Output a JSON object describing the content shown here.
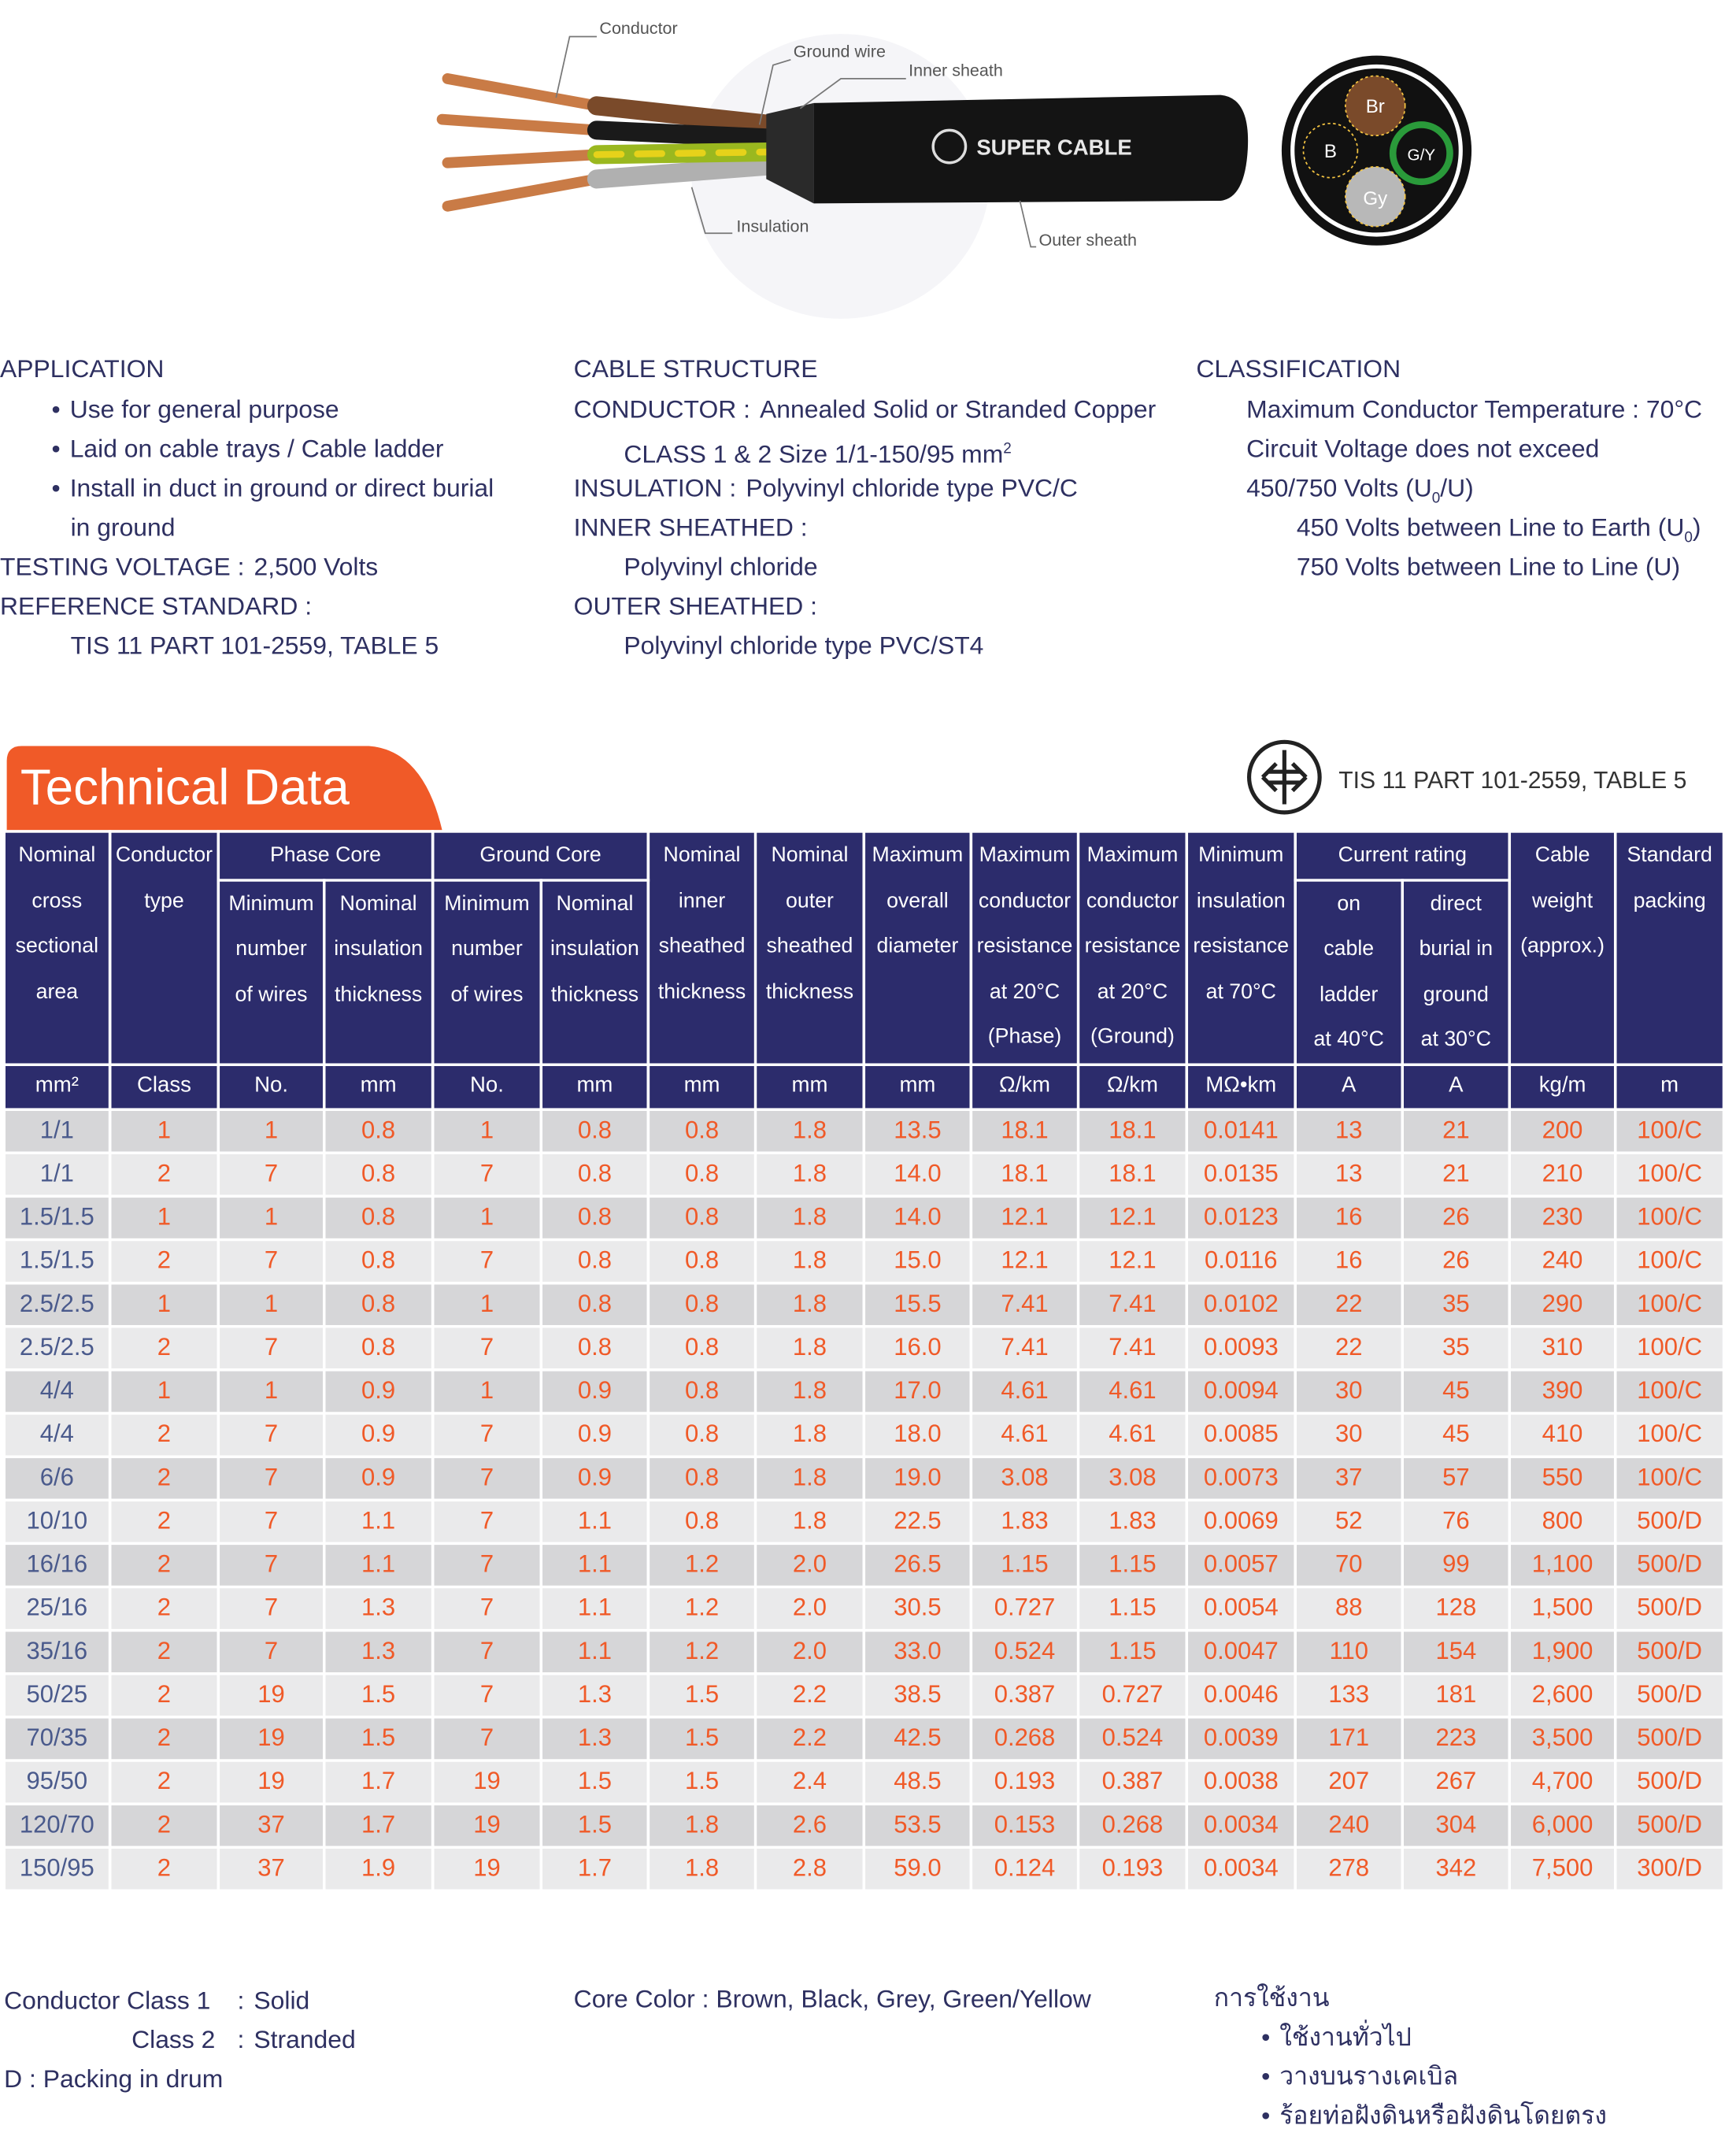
{
  "diagram": {
    "labels": {
      "conductor": "Conductor",
      "ground_wire": "Ground wire",
      "inner_sheath": "Inner sheath",
      "insulation": "Insulation",
      "outer_sheath": "Outer sheath"
    },
    "brand": "SUPER CABLE",
    "cores": [
      "Br",
      "B",
      "G/Y",
      "Gy"
    ]
  },
  "application": {
    "title": "APPLICATION",
    "items": [
      [
        "Use for general purpose"
      ],
      [
        "Laid on cable trays / Cable ladder"
      ],
      [
        "Install in duct in ground or direct burial",
        "in ground"
      ]
    ]
  },
  "testing_voltage": {
    "label": "TESTING VOLTAGE :",
    "value": "2,500 Volts"
  },
  "reference_standard": {
    "label": "REFERENCE STANDARD :",
    "value": "TIS 11 PART 101-2559, TABLE 5"
  },
  "cable_structure": {
    "title": "CABLE STRUCTURE",
    "conductor": {
      "label": "CONDUCTOR :",
      "value": "Annealed Solid or Stranded Copper",
      "detail": [
        "CLASS 1 & 2 Size 1/1-150/95 mm",
        "2"
      ]
    },
    "insulation": {
      "label": "INSULATION :",
      "value": "Polyvinyl chloride type PVC/C"
    },
    "inner_sheathed": {
      "label": "INNER SHEATHED :",
      "value": "Polyvinyl chloride"
    },
    "outer_sheathed": {
      "label": "OUTER SHEATHED :",
      "value": "Polyvinyl chloride type PVC/ST4"
    }
  },
  "classification": {
    "title": "CLASSIFICATION",
    "lines": [
      "Maximum Conductor Temperature : 70°C",
      "Circuit Voltage does not exceed",
      [
        "450/750 Volts (U",
        "0",
        "/U)"
      ]
    ],
    "sub_lines": [
      [
        "450 Volts between Line to Earth (U",
        "0",
        ")"
      ],
      "750 Volts between Line to Line (U)"
    ]
  },
  "section_title": "Technical Data",
  "standard_mark": "TIS 11 PART 101-2559, TABLE 5",
  "table": {
    "header": {
      "row1": [
        [
          "Nominal",
          "cross",
          "sectional",
          "area"
        ],
        [
          "Conductor",
          "type"
        ],
        [
          "Phase Core"
        ],
        [
          "Ground Core"
        ],
        [
          "Nominal",
          "inner",
          "sheathed",
          "thickness"
        ],
        [
          "Nominal",
          "outer",
          "sheathed",
          "thickness"
        ],
        [
          "Maximum",
          "overall",
          "diameter"
        ],
        [
          "Maximum",
          "conductor",
          "resistance",
          "at 20°C",
          "(Phase)"
        ],
        [
          "Maximum",
          "conductor",
          "resistance",
          "at 20°C",
          "(Ground)"
        ],
        [
          "Minimum",
          "insulation",
          "resistance",
          "at 70°C"
        ],
        [
          "Current rating"
        ],
        [
          "Cable",
          "weight",
          "(approx.)"
        ],
        [
          "Standard",
          "packing"
        ]
      ],
      "row2": [
        [
          "Minimum",
          "number",
          "of wires"
        ],
        [
          "Nominal",
          "insulation",
          "thickness"
        ],
        [
          "Minimum",
          "number",
          "of wires"
        ],
        [
          "Nominal",
          "insulation",
          "thickness"
        ],
        [
          "on",
          "cable",
          "ladder",
          "at 40°C"
        ],
        [
          "direct",
          "burial in",
          "ground",
          "at 30°C"
        ]
      ]
    },
    "units": [
      "mm²",
      "Class",
      "No.",
      "mm",
      "No.",
      "mm",
      "mm",
      "mm",
      "mm",
      "Ω/km",
      "Ω/km",
      "MΩ•km",
      "A",
      "A",
      "kg/m",
      "m"
    ],
    "rows": [
      [
        "1/1",
        "1",
        "1",
        "0.8",
        "1",
        "0.8",
        "0.8",
        "1.8",
        "13.5",
        "18.1",
        "18.1",
        "0.0141",
        "13",
        "21",
        "200",
        "100/C"
      ],
      [
        "1/1",
        "2",
        "7",
        "0.8",
        "7",
        "0.8",
        "0.8",
        "1.8",
        "14.0",
        "18.1",
        "18.1",
        "0.0135",
        "13",
        "21",
        "210",
        "100/C"
      ],
      [
        "1.5/1.5",
        "1",
        "1",
        "0.8",
        "1",
        "0.8",
        "0.8",
        "1.8",
        "14.0",
        "12.1",
        "12.1",
        "0.0123",
        "16",
        "26",
        "230",
        "100/C"
      ],
      [
        "1.5/1.5",
        "2",
        "7",
        "0.8",
        "7",
        "0.8",
        "0.8",
        "1.8",
        "15.0",
        "12.1",
        "12.1",
        "0.0116",
        "16",
        "26",
        "240",
        "100/C"
      ],
      [
        "2.5/2.5",
        "1",
        "1",
        "0.8",
        "1",
        "0.8",
        "0.8",
        "1.8",
        "15.5",
        "7.41",
        "7.41",
        "0.0102",
        "22",
        "35",
        "290",
        "100/C"
      ],
      [
        "2.5/2.5",
        "2",
        "7",
        "0.8",
        "7",
        "0.8",
        "0.8",
        "1.8",
        "16.0",
        "7.41",
        "7.41",
        "0.0093",
        "22",
        "35",
        "310",
        "100/C"
      ],
      [
        "4/4",
        "1",
        "1",
        "0.9",
        "1",
        "0.9",
        "0.8",
        "1.8",
        "17.0",
        "4.61",
        "4.61",
        "0.0094",
        "30",
        "45",
        "390",
        "100/C"
      ],
      [
        "4/4",
        "2",
        "7",
        "0.9",
        "7",
        "0.9",
        "0.8",
        "1.8",
        "18.0",
        "4.61",
        "4.61",
        "0.0085",
        "30",
        "45",
        "410",
        "100/C"
      ],
      [
        "6/6",
        "2",
        "7",
        "0.9",
        "7",
        "0.9",
        "0.8",
        "1.8",
        "19.0",
        "3.08",
        "3.08",
        "0.0073",
        "37",
        "57",
        "550",
        "100/C"
      ],
      [
        "10/10",
        "2",
        "7",
        "1.1",
        "7",
        "1.1",
        "0.8",
        "1.8",
        "22.5",
        "1.83",
        "1.83",
        "0.0069",
        "52",
        "76",
        "800",
        "500/D"
      ],
      [
        "16/16",
        "2",
        "7",
        "1.1",
        "7",
        "1.1",
        "1.2",
        "2.0",
        "26.5",
        "1.15",
        "1.15",
        "0.0057",
        "70",
        "99",
        "1,100",
        "500/D"
      ],
      [
        "25/16",
        "2",
        "7",
        "1.3",
        "7",
        "1.1",
        "1.2",
        "2.0",
        "30.5",
        "0.727",
        "1.15",
        "0.0054",
        "88",
        "128",
        "1,500",
        "500/D"
      ],
      [
        "35/16",
        "2",
        "7",
        "1.3",
        "7",
        "1.1",
        "1.2",
        "2.0",
        "33.0",
        "0.524",
        "1.15",
        "0.0047",
        "110",
        "154",
        "1,900",
        "500/D"
      ],
      [
        "50/25",
        "2",
        "19",
        "1.5",
        "7",
        "1.3",
        "1.5",
        "2.2",
        "38.5",
        "0.387",
        "0.727",
        "0.0046",
        "133",
        "181",
        "2,600",
        "500/D"
      ],
      [
        "70/35",
        "2",
        "19",
        "1.5",
        "7",
        "1.3",
        "1.5",
        "2.2",
        "42.5",
        "0.268",
        "0.524",
        "0.0039",
        "171",
        "223",
        "3,500",
        "500/D"
      ],
      [
        "95/50",
        "2",
        "19",
        "1.7",
        "19",
        "1.5",
        "1.5",
        "2.4",
        "48.5",
        "0.193",
        "0.387",
        "0.0038",
        "207",
        "267",
        "4,700",
        "500/D"
      ],
      [
        "120/70",
        "2",
        "37",
        "1.7",
        "19",
        "1.5",
        "1.8",
        "2.6",
        "53.5",
        "0.153",
        "0.268",
        "0.0034",
        "240",
        "304",
        "6,000",
        "500/D"
      ],
      [
        "150/95",
        "2",
        "37",
        "1.9",
        "19",
        "1.7",
        "1.8",
        "2.8",
        "59.0",
        "0.124",
        "0.193",
        "0.0034",
        "278",
        "342",
        "7,500",
        "300/D"
      ]
    ]
  },
  "footer": {
    "class_1": [
      "Conductor Class 1",
      ":",
      "Solid"
    ],
    "class_2": [
      "Class 2",
      ":",
      "Stranded"
    ],
    "packing": "D : Packing in drum",
    "core_color": "Core Color : Brown, Black, Grey, Green/Yellow",
    "thai": {
      "title": "การใช้งาน",
      "items": [
        "ใช้งานทั่วไป",
        "วางบนรางเคเบิล",
        "ร้อยท่อฝังดินหรือฝังดินโดยตรง"
      ]
    }
  }
}
